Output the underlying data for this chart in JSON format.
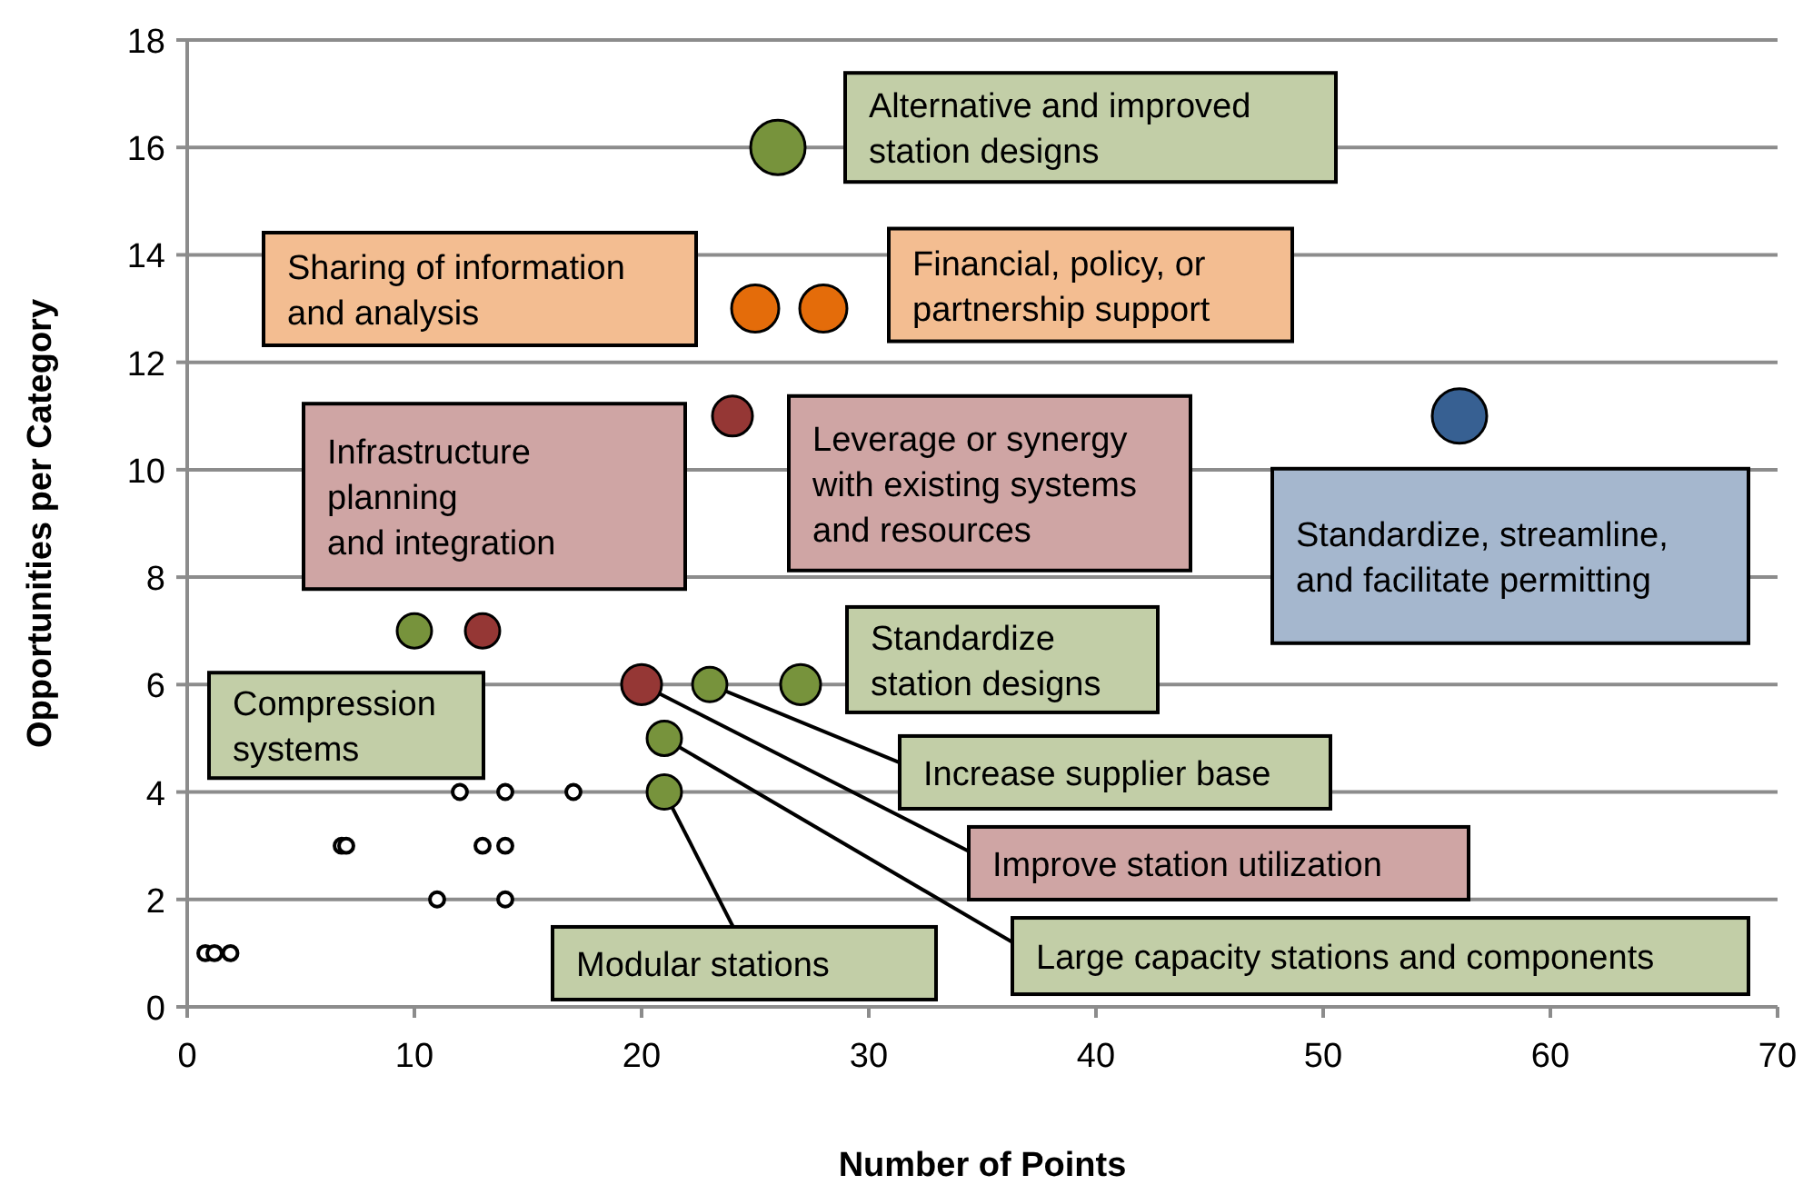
{
  "chart_data": {
    "type": "bubble",
    "xlabel": "Number of Points",
    "ylabel": "Opportunities per Category",
    "xlim": [
      0,
      70
    ],
    "ylim": [
      0,
      18
    ],
    "xticks": [
      0,
      10,
      20,
      30,
      40,
      50,
      60,
      70
    ],
    "yticks": [
      0,
      2,
      4,
      6,
      8,
      10,
      12,
      14,
      16,
      18
    ],
    "grid": "y",
    "series": [
      {
        "color": "#77933c",
        "x": [
          26,
          10,
          23,
          27,
          21,
          21
        ],
        "values": [
          16,
          7,
          6,
          6,
          5,
          4
        ],
        "sizes": [
          1,
          0.4,
          0.4,
          0.54,
          0.4,
          0.4
        ]
      },
      {
        "color": "#e46c0a",
        "x": [
          25,
          28
        ],
        "values": [
          13,
          13
        ],
        "sizes": [
          0.75,
          0.75
        ]
      },
      {
        "color": "#953735",
        "x": [
          24,
          13,
          20
        ],
        "values": [
          11,
          7,
          6
        ],
        "sizes": [
          0.54,
          0.4,
          0.54
        ]
      },
      {
        "color": "#376092",
        "x": [
          56
        ],
        "values": [
          11
        ],
        "sizes": [
          1
        ]
      },
      {
        "color": "#ffffff",
        "x": [
          12,
          14,
          17,
          6.8,
          7,
          13,
          14,
          11,
          14,
          0.8,
          1.2,
          1.9
        ],
        "values": [
          4,
          4,
          4,
          3,
          3,
          3,
          3,
          2,
          2,
          1,
          1,
          1
        ],
        "sizes": [
          0.07,
          0.07,
          0.07,
          0.07,
          0.07,
          0.07,
          0.07,
          0.07,
          0.07,
          0.07,
          0.07,
          0.07
        ]
      }
    ],
    "annotations": [
      {
        "text": "Alternative and improved\nstation designs",
        "x": 26,
        "y": 16
      },
      "Sharing of information\nand analysis",
      {
        "text": "Financial, policy, or\npartnership support",
        "x": 28,
        "y": 13
      },
      {
        "text": "Leverage or synergy\nwith existing systems\nand resources",
        "x": 24,
        "y": 11
      },
      {
        "text": "Standardize, streamline,\nand facilitate permitting",
        "x": 56,
        "y": 11
      },
      {
        "text": "Infrastructure\nplanning\nand integration",
        "x": 13,
        "y": 7
      },
      {
        "text": "Compression\nsystems",
        "x": 10,
        "y": 7
      },
      {
        "text": "Standardize\nstation designs",
        "x": 27,
        "y": 6
      },
      {
        "text": "Increase supplier base",
        "x": 23,
        "y": 6
      },
      {
        "text": "Improve station utilization",
        "x": 20,
        "y": 6
      },
      {
        "text": "Large capacity stations and components",
        "x": 21,
        "y": 5
      },
      {
        "text": "Modular stations",
        "x": 21,
        "y": 4
      }
    ]
  }
}
